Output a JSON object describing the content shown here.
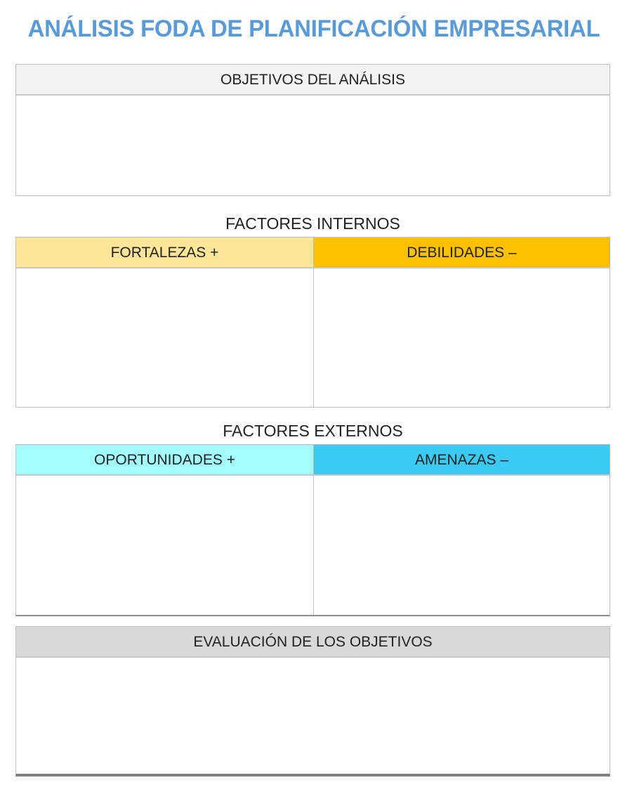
{
  "title": "ANÁLISIS FODA DE PLANIFICACIÓN EMPRESARIAL",
  "objectives": {
    "header": "OBJETIVOS DEL ANÁLISIS",
    "content": ""
  },
  "internal": {
    "label": "FACTORES INTERNOS",
    "strengths": {
      "header": "FORTALEZAS +",
      "color": "#ffe699",
      "content": ""
    },
    "weaknesses": {
      "header": "DEBILIDADES –",
      "color": "#ffc000",
      "content": ""
    }
  },
  "external": {
    "label": "FACTORES EXTERNOS",
    "opportunities": {
      "header": "OPORTUNIDADES +",
      "color": "#a3ffff",
      "content": ""
    },
    "threats": {
      "header": "AMENAZAS –",
      "color": "#3bc9f5",
      "content": ""
    }
  },
  "evaluation": {
    "header": "EVALUACIÓN DE LOS OBJETIVOS",
    "content": ""
  }
}
